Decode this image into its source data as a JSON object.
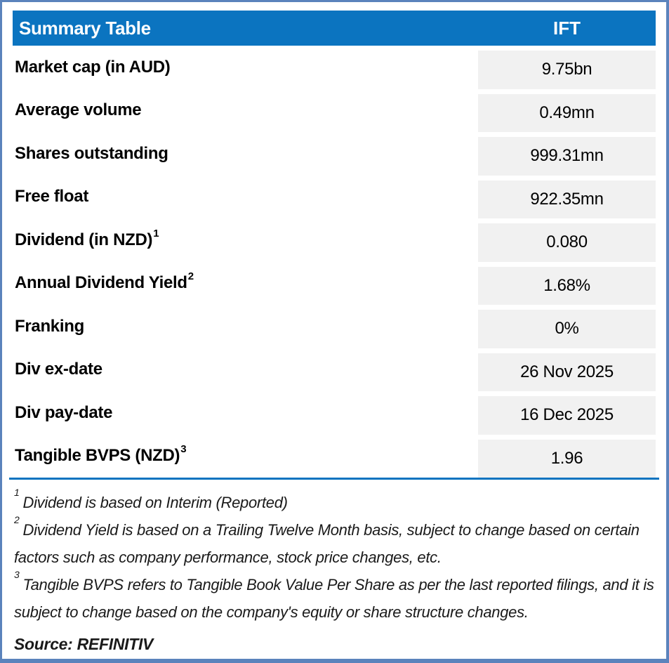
{
  "table": {
    "header": {
      "title": "Summary Table",
      "column": "IFT"
    },
    "rows": [
      {
        "label": "Market cap (in AUD)",
        "sup": "",
        "value": "9.75bn"
      },
      {
        "label": "Average volume",
        "sup": "",
        "value": "0.49mn"
      },
      {
        "label": "Shares outstanding",
        "sup": "",
        "value": "999.31mn"
      },
      {
        "label": "Free float",
        "sup": "",
        "value": "922.35mn"
      },
      {
        "label": "Dividend (in NZD)",
        "sup": "1",
        "value": "0.080"
      },
      {
        "label": "Annual Dividend Yield",
        "sup": "2",
        "value": "1.68%"
      },
      {
        "label": "Franking",
        "sup": "",
        "value": "0%"
      },
      {
        "label": "Div ex-date",
        "sup": "",
        "value": "26 Nov 2025"
      },
      {
        "label": "Div pay-date",
        "sup": "",
        "value": "16 Dec 2025"
      },
      {
        "label": "Tangible BVPS (NZD)",
        "sup": "3",
        "value": "1.96"
      }
    ]
  },
  "footnotes": [
    {
      "sup": "1",
      "text": "Dividend is based on Interim (Reported)"
    },
    {
      "sup": "2",
      "text": "Dividend Yield is based on a Trailing Twelve Month basis, subject to change based on certain factors such as company performance, stock price changes, etc."
    },
    {
      "sup": "3",
      "text": "Tangible BVPS refers to Tangible Book Value Per Share as per the last reported filings, and it is subject to change based on the company's equity or share structure changes."
    }
  ],
  "source": "Source: REFINITIV",
  "colors": {
    "header_bg": "#0B74C0",
    "frame_border": "#5B83BC",
    "value_cell_bg": "#F1F1F1",
    "rule": "#0B74C0",
    "header_text": "#FFFFFF",
    "body_text": "#000000"
  }
}
